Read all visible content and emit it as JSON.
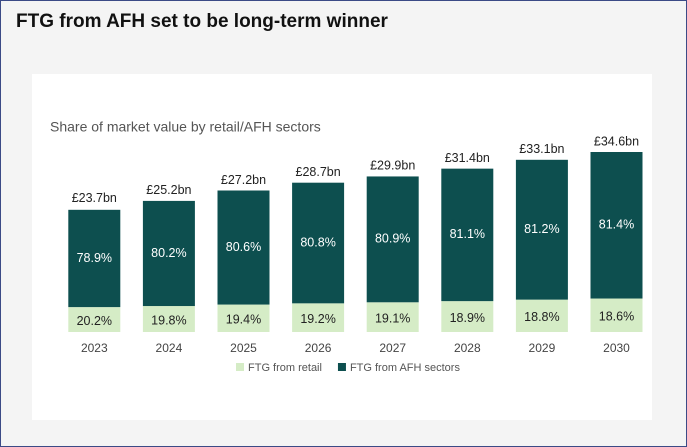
{
  "heading": "FTG from AFH set to be long-term winner",
  "chart_data": {
    "type": "stacked-bar",
    "title": "Share of market value by retail/AFH sectors",
    "categories": [
      "2023",
      "2024",
      "2025",
      "2026",
      "2027",
      "2028",
      "2029",
      "2030"
    ],
    "series": [
      {
        "name": "FTG from retail",
        "color": "#d5ecc6",
        "values": [
          20.2,
          19.8,
          19.4,
          19.2,
          19.1,
          18.9,
          18.8,
          18.6
        ],
        "value_labels": [
          "20.2%",
          "19.8%",
          "19.4%",
          "19.2%",
          "19.1%",
          "18.9%",
          "18.8%",
          "18.6%"
        ]
      },
      {
        "name": "FTG from AFH sectors",
        "color": "#0d4f4f",
        "values": [
          78.9,
          80.2,
          80.6,
          80.8,
          80.9,
          81.1,
          81.2,
          81.4
        ],
        "value_labels": [
          "78.9%",
          "80.2%",
          "80.6%",
          "80.8%",
          "80.9%",
          "81.1%",
          "81.2%",
          "81.4%"
        ]
      }
    ],
    "totals": {
      "values": [
        23.7,
        25.2,
        27.2,
        28.7,
        29.9,
        31.4,
        33.1,
        34.6
      ],
      "value_labels": [
        "£23.7bn",
        "£25.2bn",
        "£27.2bn",
        "£28.7bn",
        "£29.9bn",
        "£31.4bn",
        "£33.1bn",
        "£34.6bn"
      ]
    }
  }
}
